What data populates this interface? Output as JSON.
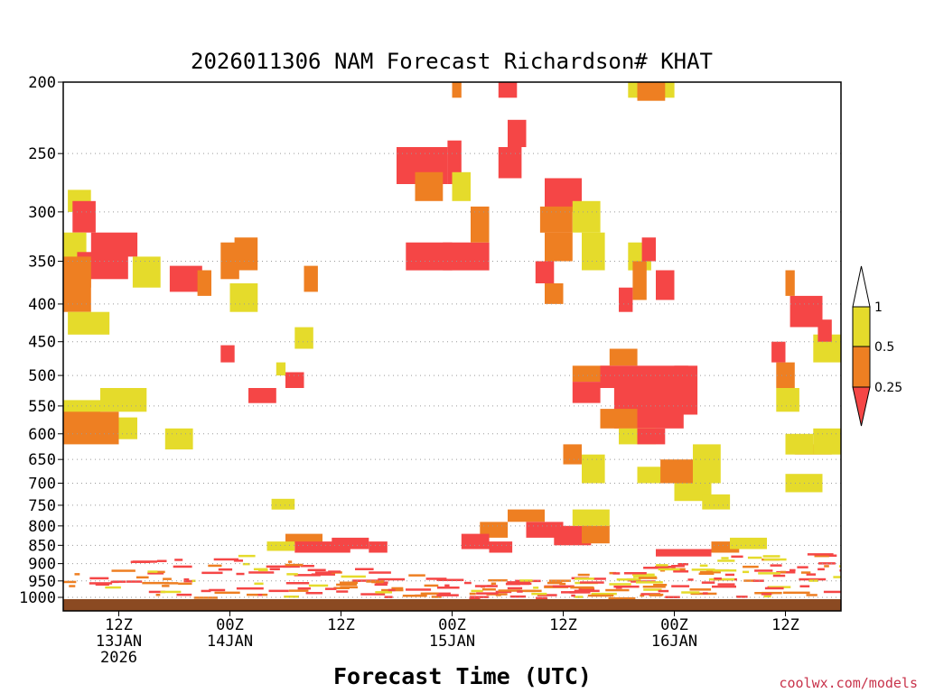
{
  "chart_data": {
    "type": "heatmap",
    "title": "2026011306 NAM Forecast Richardson# KHAT",
    "xlabel": "Forecast Time (UTC)",
    "ylabel": "",
    "watermark": "coolwx.com/models",
    "y_axis": {
      "scale": "log-pressure",
      "range_hpa": [
        200,
        1000
      ],
      "ticks": [
        "200",
        "250",
        "300",
        "350",
        "400",
        "450",
        "500",
        "550",
        "600",
        "650",
        "700",
        "750",
        "800",
        "850",
        "900",
        "950",
        "1000"
      ]
    },
    "x_axis": {
      "range_hours": [
        0,
        84
      ],
      "ticks": [
        {
          "hour": 6,
          "lines": [
            "12Z",
            "13JAN",
            "2026"
          ]
        },
        {
          "hour": 18,
          "lines": [
            "00Z",
            "14JAN"
          ]
        },
        {
          "hour": 30,
          "lines": [
            "12Z"
          ]
        },
        {
          "hour": 42,
          "lines": [
            "00Z",
            "15JAN"
          ]
        },
        {
          "hour": 54,
          "lines": [
            "12Z"
          ]
        },
        {
          "hour": 66,
          "lines": [
            "00Z",
            "16JAN"
          ]
        },
        {
          "hour": 78,
          "lines": [
            "12Z"
          ]
        }
      ]
    },
    "legend": {
      "position": "right",
      "levels": [
        {
          "label": "1",
          "value": 1.0
        },
        {
          "label": "0.5",
          "value": 0.5
        },
        {
          "label": "0.25",
          "value": 0.25
        }
      ],
      "bins": [
        {
          "range": [
            1.0,
            null
          ],
          "color": "#ffffff",
          "name": "above 1"
        },
        {
          "range": [
            0.5,
            1.0
          ],
          "color": "#e5db2b",
          "name": "0.5 to 1"
        },
        {
          "range": [
            0.25,
            0.5
          ],
          "color": "#ee7f22",
          "name": "0.25 to 0.5"
        },
        {
          "range": [
            null,
            0.25
          ],
          "color": "#f54646",
          "name": "below 0.25"
        }
      ]
    },
    "regions": [
      {
        "t": [
          0.5,
          3
        ],
        "p": [
          280,
          300
        ],
        "bin": 1
      },
      {
        "t": [
          1,
          3.5
        ],
        "p": [
          290,
          320
        ],
        "bin": 3
      },
      {
        "t": [
          0,
          2.5
        ],
        "p": [
          320,
          370
        ],
        "bin": 1
      },
      {
        "t": [
          3,
          8
        ],
        "p": [
          320,
          345
        ],
        "bin": 3
      },
      {
        "t": [
          1.5,
          7
        ],
        "p": [
          340,
          370
        ],
        "bin": 3
      },
      {
        "t": [
          0,
          3
        ],
        "p": [
          345,
          380
        ],
        "bin": 2
      },
      {
        "t": [
          0,
          3
        ],
        "p": [
          370,
          410
        ],
        "bin": 2
      },
      {
        "t": [
          0.5,
          5
        ],
        "p": [
          410,
          440
        ],
        "bin": 1
      },
      {
        "t": [
          7.5,
          10.5
        ],
        "p": [
          345,
          380
        ],
        "bin": 1
      },
      {
        "t": [
          0,
          4
        ],
        "p": [
          540,
          570
        ],
        "bin": 1
      },
      {
        "t": [
          4,
          9
        ],
        "p": [
          520,
          560
        ],
        "bin": 1
      },
      {
        "t": [
          0,
          6
        ],
        "p": [
          560,
          620
        ],
        "bin": 2
      },
      {
        "t": [
          6,
          8
        ],
        "p": [
          570,
          610
        ],
        "bin": 1
      },
      {
        "t": [
          11,
          14
        ],
        "p": [
          590,
          630
        ],
        "bin": 1
      },
      {
        "t": [
          11.5,
          15
        ],
        "p": [
          355,
          385
        ],
        "bin": 3
      },
      {
        "t": [
          14.5,
          16
        ],
        "p": [
          360,
          390
        ],
        "bin": 2
      },
      {
        "t": [
          17,
          19
        ],
        "p": [
          330,
          370
        ],
        "bin": 2
      },
      {
        "t": [
          18,
          21
        ],
        "p": [
          375,
          410
        ],
        "bin": 1
      },
      {
        "t": [
          18.5,
          21
        ],
        "p": [
          325,
          360
        ],
        "bin": 2
      },
      {
        "t": [
          17,
          18.5
        ],
        "p": [
          455,
          480
        ],
        "bin": 3
      },
      {
        "t": [
          20,
          23
        ],
        "p": [
          520,
          545
        ],
        "bin": 3
      },
      {
        "t": [
          24,
          26
        ],
        "p": [
          495,
          520
        ],
        "bin": 3
      },
      {
        "t": [
          26,
          27.5
        ],
        "p": [
          355,
          385
        ],
        "bin": 2
      },
      {
        "t": [
          25,
          27
        ],
        "p": [
          430,
          460
        ],
        "bin": 1
      },
      {
        "t": [
          23,
          24
        ],
        "p": [
          480,
          500
        ],
        "bin": 1
      },
      {
        "t": [
          22.5,
          25
        ],
        "p": [
          735,
          760
        ],
        "bin": 1
      },
      {
        "t": [
          36,
          41.5
        ],
        "p": [
          245,
          275
        ],
        "bin": 3
      },
      {
        "t": [
          38,
          41
        ],
        "p": [
          265,
          290
        ],
        "bin": 2
      },
      {
        "t": [
          41.5,
          43
        ],
        "p": [
          240,
          275
        ],
        "bin": 3
      },
      {
        "t": [
          42,
          44
        ],
        "p": [
          265,
          290
        ],
        "bin": 1
      },
      {
        "t": [
          37,
          42
        ],
        "p": [
          330,
          360
        ],
        "bin": 3
      },
      {
        "t": [
          41,
          46
        ],
        "p": [
          330,
          360
        ],
        "bin": 3
      },
      {
        "t": [
          44,
          46
        ],
        "p": [
          295,
          330
        ],
        "bin": 2
      },
      {
        "t": [
          47,
          49
        ],
        "p": [
          200,
          210
        ],
        "bin": 3
      },
      {
        "t": [
          42,
          43
        ],
        "p": [
          200,
          210
        ],
        "bin": 2
      },
      {
        "t": [
          48,
          50
        ],
        "p": [
          225,
          245
        ],
        "bin": 3
      },
      {
        "t": [
          47,
          49.5
        ],
        "p": [
          245,
          270
        ],
        "bin": 3
      },
      {
        "t": [
          52,
          56
        ],
        "p": [
          270,
          300
        ],
        "bin": 3
      },
      {
        "t": [
          51.5,
          55
        ],
        "p": [
          295,
          320
        ],
        "bin": 2
      },
      {
        "t": [
          55,
          58
        ],
        "p": [
          290,
          320
        ],
        "bin": 1
      },
      {
        "t": [
          52,
          55
        ],
        "p": [
          320,
          350
        ],
        "bin": 2
      },
      {
        "t": [
          51,
          53
        ],
        "p": [
          350,
          375
        ],
        "bin": 3
      },
      {
        "t": [
          52,
          54
        ],
        "p": [
          375,
          400
        ],
        "bin": 2
      },
      {
        "t": [
          56,
          58.5
        ],
        "p": [
          320,
          360
        ],
        "bin": 1
      },
      {
        "t": [
          61,
          66
        ],
        "p": [
          200,
          210
        ],
        "bin": 1
      },
      {
        "t": [
          62,
          65
        ],
        "p": [
          200,
          212
        ],
        "bin": 2
      },
      {
        "t": [
          61,
          63.5
        ],
        "p": [
          330,
          360
        ],
        "bin": 1
      },
      {
        "t": [
          61.5,
          63
        ],
        "p": [
          350,
          395
        ],
        "bin": 2
      },
      {
        "t": [
          62.5,
          64
        ],
        "p": [
          325,
          350
        ],
        "bin": 3
      },
      {
        "t": [
          60,
          61.5
        ],
        "p": [
          380,
          410
        ],
        "bin": 3
      },
      {
        "t": [
          64,
          66
        ],
        "p": [
          360,
          395
        ],
        "bin": 3
      },
      {
        "t": [
          59,
          62
        ],
        "p": [
          460,
          485
        ],
        "bin": 2
      },
      {
        "t": [
          55,
          59
        ],
        "p": [
          485,
          510
        ],
        "bin": 2
      },
      {
        "t": [
          55,
          58
        ],
        "p": [
          510,
          545
        ],
        "bin": 3
      },
      {
        "t": [
          58,
          67.5
        ],
        "p": [
          485,
          520
        ],
        "bin": 3
      },
      {
        "t": [
          59.5,
          67
        ],
        "p": [
          520,
          590
        ],
        "bin": 3
      },
      {
        "t": [
          58,
          62
        ],
        "p": [
          555,
          590
        ],
        "bin": 2
      },
      {
        "t": [
          66,
          68.5
        ],
        "p": [
          485,
          565
        ],
        "bin": 3
      },
      {
        "t": [
          60,
          64
        ],
        "p": [
          590,
          620
        ],
        "bin": 1
      },
      {
        "t": [
          62,
          65
        ],
        "p": [
          590,
          620
        ],
        "bin": 3
      },
      {
        "t": [
          56,
          58.5
        ],
        "p": [
          640,
          700
        ],
        "bin": 1
      },
      {
        "t": [
          54,
          56
        ],
        "p": [
          620,
          660
        ],
        "bin": 2
      },
      {
        "t": [
          62,
          65
        ],
        "p": [
          665,
          700
        ],
        "bin": 1
      },
      {
        "t": [
          64.5,
          68
        ],
        "p": [
          650,
          700
        ],
        "bin": 2
      },
      {
        "t": [
          68,
          71
        ],
        "p": [
          620,
          700
        ],
        "bin": 1
      },
      {
        "t": [
          66,
          70
        ],
        "p": [
          700,
          740
        ],
        "bin": 1
      },
      {
        "t": [
          69,
          72
        ],
        "p": [
          725,
          760
        ],
        "bin": 1
      },
      {
        "t": [
          48,
          52
        ],
        "p": [
          760,
          790
        ],
        "bin": 2
      },
      {
        "t": [
          50,
          54
        ],
        "p": [
          790,
          830
        ],
        "bin": 3
      },
      {
        "t": [
          53,
          57
        ],
        "p": [
          800,
          850
        ],
        "bin": 3
      },
      {
        "t": [
          55,
          59
        ],
        "p": [
          760,
          800
        ],
        "bin": 1
      },
      {
        "t": [
          56,
          59
        ],
        "p": [
          800,
          845
        ],
        "bin": 2
      },
      {
        "t": [
          45,
          48
        ],
        "p": [
          790,
          830
        ],
        "bin": 2
      },
      {
        "t": [
          43,
          46
        ],
        "p": [
          820,
          860
        ],
        "bin": 3
      },
      {
        "t": [
          46,
          48.5
        ],
        "p": [
          840,
          870
        ],
        "bin": 3
      },
      {
        "t": [
          24,
          28
        ],
        "p": [
          820,
          845
        ],
        "bin": 2
      },
      {
        "t": [
          25,
          31
        ],
        "p": [
          840,
          870
        ],
        "bin": 3
      },
      {
        "t": [
          29,
          33
        ],
        "p": [
          830,
          860
        ],
        "bin": 3
      },
      {
        "t": [
          33,
          35
        ],
        "p": [
          840,
          870
        ],
        "bin": 3
      },
      {
        "t": [
          22,
          25
        ],
        "p": [
          840,
          865
        ],
        "bin": 1
      },
      {
        "t": [
          64,
          70
        ],
        "p": [
          860,
          880
        ],
        "bin": 3
      },
      {
        "t": [
          70,
          73
        ],
        "p": [
          840,
          870
        ],
        "bin": 2
      },
      {
        "t": [
          72,
          76
        ],
        "p": [
          830,
          860
        ],
        "bin": 1
      },
      {
        "t": [
          78,
          82
        ],
        "p": [
          680,
          720
        ],
        "bin": 1
      },
      {
        "t": [
          79,
          83
        ],
        "p": [
          620,
          640
        ],
        "bin": 2
      },
      {
        "t": [
          78,
          81
        ],
        "p": [
          600,
          640
        ],
        "bin": 1
      },
      {
        "t": [
          81,
          84
        ],
        "p": [
          590,
          640
        ],
        "bin": 1
      },
      {
        "t": [
          78.5,
          82
        ],
        "p": [
          390,
          430
        ],
        "bin": 3
      },
      {
        "t": [
          78,
          79
        ],
        "p": [
          360,
          390
        ],
        "bin": 2
      },
      {
        "t": [
          77,
          79
        ],
        "p": [
          480,
          520
        ],
        "bin": 2
      },
      {
        "t": [
          76.5,
          78
        ],
        "p": [
          450,
          480
        ],
        "bin": 3
      },
      {
        "t": [
          77,
          79.5
        ],
        "p": [
          520,
          560
        ],
        "bin": 1
      },
      {
        "t": [
          81,
          84
        ],
        "p": [
          440,
          480
        ],
        "bin": 1
      },
      {
        "t": [
          81.5,
          83
        ],
        "p": [
          420,
          450
        ],
        "bin": 3
      }
    ]
  }
}
